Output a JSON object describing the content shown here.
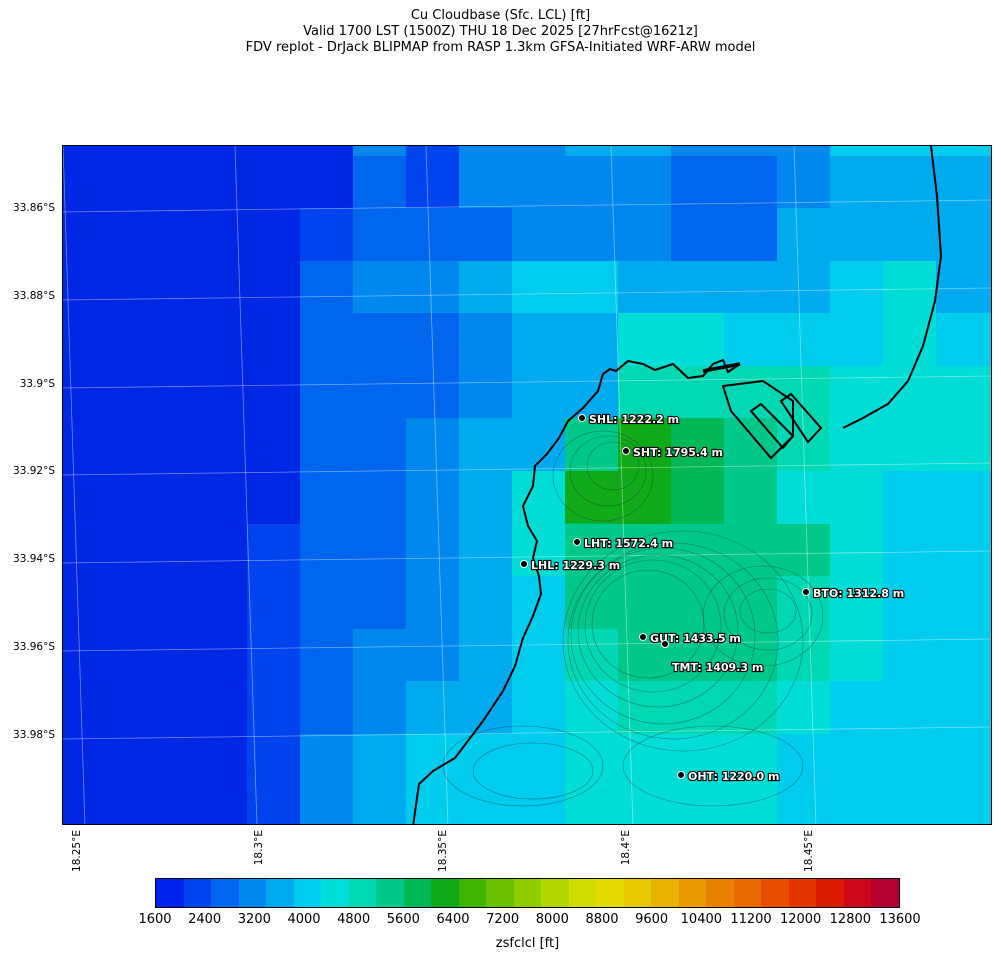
{
  "title": {
    "line1": "Cu Cloudbase (Sfc. LCL) [ft]",
    "line2": "Valid 1700 LST (1500Z) THU 18 Dec 2025 [27hrFcst@1621z]",
    "line3": "FDV replot - DrJack BLIPMAP from RASP 1.3km GFSA-Initiated WRF-ARW model"
  },
  "axes": {
    "lat_labels": [
      "33.86°S",
      "33.88°S",
      "33.9°S",
      "33.92°S",
      "33.94°S",
      "33.96°S",
      "33.98°S"
    ],
    "lon_labels": [
      "18.25°E",
      "18.3°E",
      "18.35°E",
      "18.4°E",
      "18.45°E"
    ]
  },
  "stations": [
    {
      "code": "SHL",
      "label": "SHL: 1222.2 m"
    },
    {
      "code": "SHT",
      "label": "SHT: 1795.4 m"
    },
    {
      "code": "LHT",
      "label": "LHT: 1572.4 m"
    },
    {
      "code": "LHL",
      "label": "LHL: 1229.3 m"
    },
    {
      "code": "BTO",
      "label": "BTO: 1312.8 m"
    },
    {
      "code": "GUT",
      "label": "GUT: 1433.5 m"
    },
    {
      "code": "TMT",
      "label": "TMT: 1409.3 m"
    },
    {
      "code": "OHT",
      "label": "OHT: 1220.0 m"
    }
  ],
  "colorbar": {
    "label": "zsfclcl [ft]",
    "tick_labels": [
      "1600",
      "2400",
      "3200",
      "4000",
      "4800",
      "5600",
      "6400",
      "7200",
      "8000",
      "8800",
      "9600",
      "10400",
      "11200",
      "12000",
      "12800",
      "13600"
    ],
    "colors": [
      "#0022ee",
      "#0044ee",
      "#0066ee",
      "#0088ee",
      "#00aaee",
      "#00ccee",
      "#00ddd6",
      "#00d8b4",
      "#00c88a",
      "#00b856",
      "#10aa18",
      "#40b400",
      "#68c000",
      "#90cc00",
      "#b4d600",
      "#d0dc00",
      "#e2da00",
      "#e8c800",
      "#e8b200",
      "#e89a00",
      "#e88200",
      "#e86a00",
      "#e84e00",
      "#e43400",
      "#dc1a00",
      "#cc0818",
      "#b40030"
    ]
  },
  "field_colors": {
    "c0": "#0026e6",
    "c1": "#0044ee",
    "c2": "#0066ee",
    "c3": "#0088ee",
    "c4": "#00aaee",
    "c5": "#00ccee",
    "c6": "#00ddd6",
    "c7": "#00d8b4",
    "c8": "#00c88a",
    "c9": "#00b856",
    "c10": "#10aa18"
  }
}
